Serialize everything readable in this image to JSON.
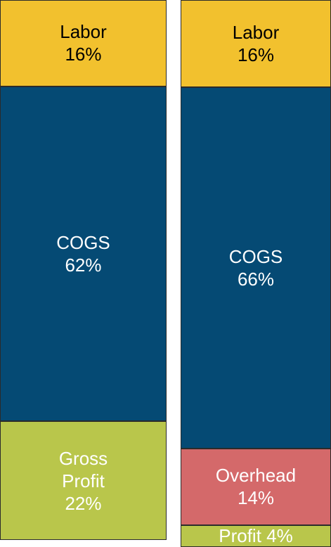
{
  "chart_data": [
    {
      "type": "stacked-column",
      "series": [
        {
          "name": "Labor",
          "color": "#f2c12e",
          "values": [
            16
          ],
          "value_labels": [
            "16%"
          ]
        },
        {
          "name": "COGS",
          "color": "#054a74",
          "values": [
            62
          ],
          "value_labels": [
            "62%"
          ]
        },
        {
          "name": "Gross Profit",
          "color": "#b9c64b",
          "values": [
            22
          ],
          "value_labels": [
            "22%"
          ]
        }
      ]
    },
    {
      "type": "stacked-column",
      "series": [
        {
          "name": "Labor",
          "color": "#f2c12e",
          "values": [
            16
          ],
          "value_labels": [
            "16%"
          ]
        },
        {
          "name": "COGS",
          "color": "#054a74",
          "values": [
            66
          ],
          "value_labels": [
            "66%"
          ]
        },
        {
          "name": "Overhead",
          "color": "#d4696a",
          "values": [
            14
          ],
          "value_labels": [
            "14%"
          ]
        },
        {
          "name": "Profit",
          "color": "#b9c64b",
          "values": [
            4
          ],
          "value_labels": [
            "4%"
          ]
        }
      ]
    }
  ]
}
